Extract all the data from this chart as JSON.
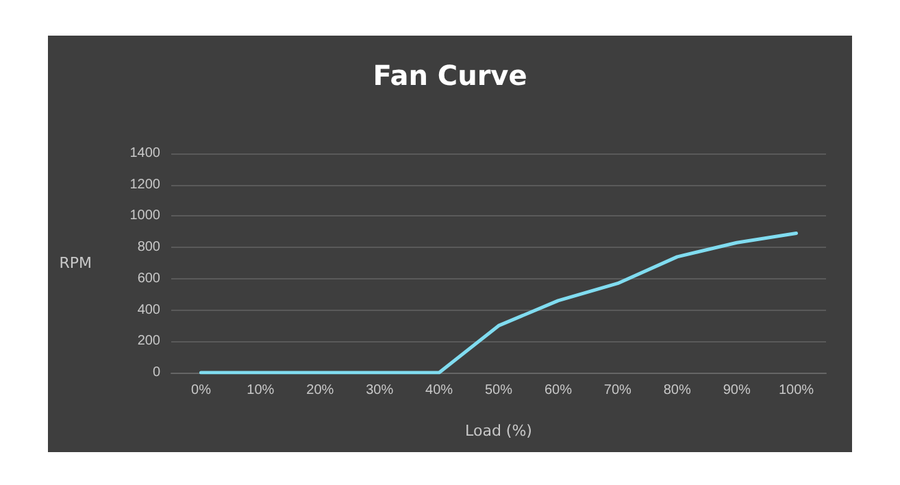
{
  "chart_data": {
    "type": "line",
    "title": "Fan Curve",
    "xlabel": "Load (%)",
    "ylabel": "RPM",
    "categories": [
      "0%",
      "10%",
      "20%",
      "30%",
      "40%",
      "50%",
      "60%",
      "70%",
      "80%",
      "90%",
      "100%"
    ],
    "series": [
      {
        "color": "#80dcf0",
        "values": [
          0,
          0,
          0,
          0,
          0,
          300,
          460,
          570,
          740,
          830,
          890
        ]
      }
    ],
    "ylim": [
      0,
      1400
    ],
    "yticks": [
      0,
      200,
      400,
      600,
      800,
      1000,
      1200,
      1400
    ],
    "grid": "y",
    "marker": "none",
    "line_style": "solid"
  }
}
